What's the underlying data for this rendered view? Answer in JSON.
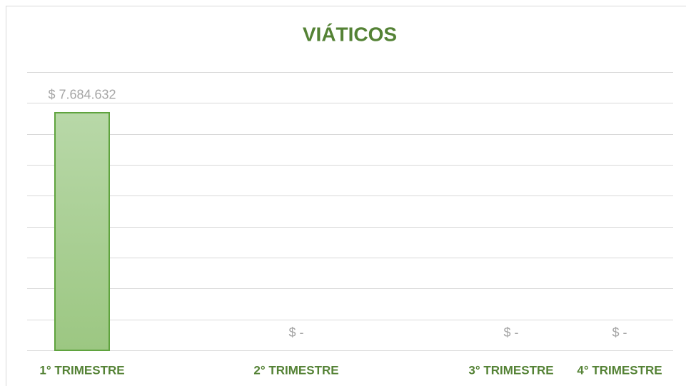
{
  "chart_data": {
    "type": "bar",
    "title": "VIÁTICOS",
    "categories": [
      "1° TRIMESTRE",
      "2° TRIMESTRE",
      "3° TRIMESTRE",
      "4° TRIMESTRE"
    ],
    "values": [
      7684632,
      0,
      0,
      0
    ],
    "value_labels": [
      "$ 7.684.632",
      "$ -",
      "$ -",
      "$ -"
    ],
    "color": "#a9d08e",
    "ylim": [
      0,
      9000000
    ],
    "yticks": [
      0,
      1000000,
      2000000,
      3000000,
      4000000,
      5000000,
      6000000,
      7000000,
      8000000,
      9000000
    ],
    "grid": true
  }
}
